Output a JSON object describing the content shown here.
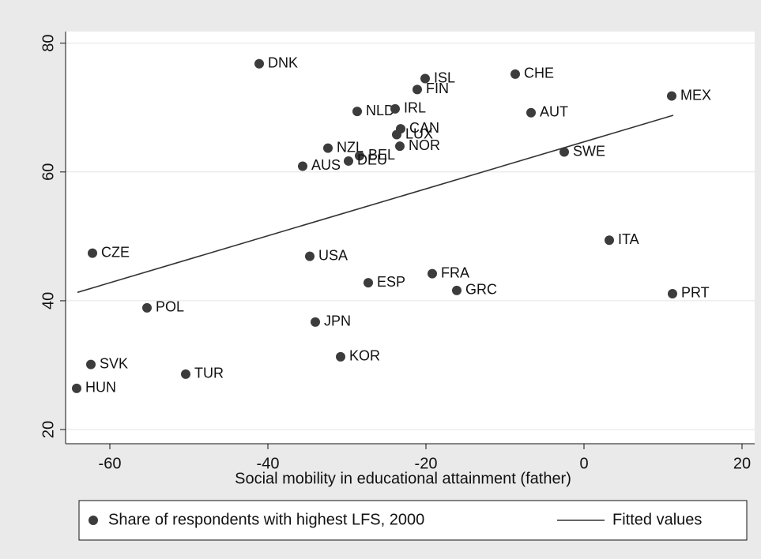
{
  "chart_data": {
    "type": "scatter",
    "xlabel": "Social mobility in educational attainment (father)",
    "xlim": [
      -65.6,
      21.6
    ],
    "ylim": [
      17.8,
      81.8
    ],
    "xticks": [
      -60,
      -40,
      -20,
      0,
      20
    ],
    "yticks": [
      20,
      40,
      60,
      80
    ],
    "grid": "y",
    "legend": "bottom",
    "series": [
      {
        "name": "Share of respondents with highest LFS, 2000",
        "type": "scatter",
        "color": "#3c3c3c",
        "labels": [
          "DNK",
          "ISL",
          "CHE",
          "FIN",
          "MEX",
          "NLD",
          "IRL",
          "AUT",
          "CAN",
          "LUX",
          "NZL",
          "NOR",
          "SWE",
          "BEL",
          "DEU",
          "AUS",
          "ITA",
          "CZE",
          "USA",
          "FRA",
          "ESP",
          "GRC",
          "PRT",
          "POL",
          "JPN",
          "KOR",
          "SVK",
          "TUR",
          "HUN"
        ],
        "x": [
          -41.1,
          -20.1,
          -8.7,
          -21.1,
          11.1,
          -28.7,
          -23.9,
          -6.7,
          -23.2,
          -23.7,
          -32.4,
          -23.3,
          -2.5,
          -28.4,
          -29.8,
          -35.6,
          3.2,
          -62.2,
          -34.7,
          -19.2,
          -27.3,
          -16.1,
          11.2,
          -55.3,
          -34.0,
          -30.8,
          -62.4,
          -50.4,
          -64.2
        ],
        "values": [
          76.8,
          74.5,
          75.2,
          72.8,
          71.8,
          69.4,
          69.8,
          69.2,
          66.7,
          65.8,
          63.7,
          64.0,
          63.1,
          62.5,
          61.7,
          60.9,
          49.4,
          47.4,
          46.9,
          44.2,
          42.8,
          41.6,
          41.1,
          38.9,
          36.7,
          31.3,
          30.1,
          28.6,
          26.4
        ]
      },
      {
        "name": "Fitted values",
        "type": "line",
        "color": "#333333",
        "x": [
          -64.1,
          11.3
        ],
        "values": [
          41.3,
          68.8
        ]
      }
    ]
  }
}
